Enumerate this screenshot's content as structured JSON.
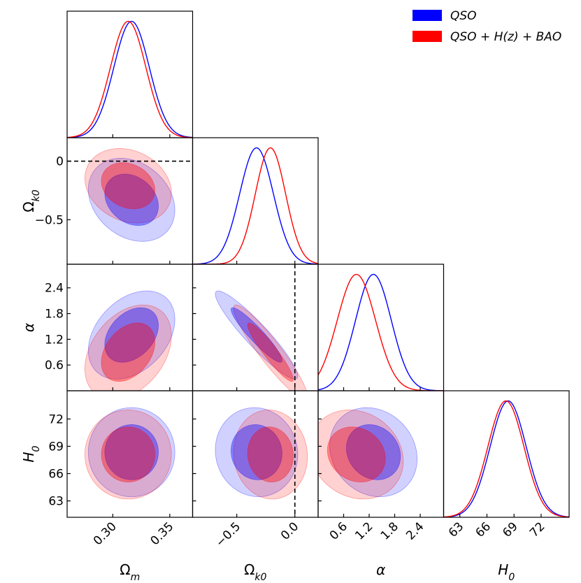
{
  "chart_data": {
    "type": "corner",
    "title": "",
    "parameters": [
      {
        "key": "om",
        "label": "Ωm",
        "symbol": "Ω",
        "sub": "m",
        "range": [
          0.26,
          0.37
        ],
        "ticks": [
          0.3,
          0.35
        ],
        "tick_labels": [
          "0.30",
          "0.35"
        ]
      },
      {
        "key": "ok",
        "label": "Ωk0",
        "symbol": "Ω",
        "sub": "k0",
        "range": [
          -0.88,
          0.2
        ],
        "ticks": [
          -0.5,
          0.0
        ],
        "tick_labels": [
          "−0.5",
          "0.0"
        ],
        "row_tick_labels": [
          "−0.5",
          "0"
        ]
      },
      {
        "key": "al",
        "label": "α",
        "symbol": "α",
        "sub": "",
        "range": [
          0.0,
          2.95
        ],
        "ticks": [
          0.6,
          1.2,
          1.8,
          2.4
        ],
        "tick_labels": [
          "0.6",
          "1.2",
          "1.8",
          "2.4"
        ]
      },
      {
        "key": "h0",
        "label": "H0",
        "symbol": "H",
        "sub": "0",
        "range": [
          61.2,
          75.1
        ],
        "ticks": [
          63,
          66,
          69,
          72
        ],
        "tick_labels": [
          "63",
          "66",
          "69",
          "72"
        ]
      }
    ],
    "reference_lines": [
      {
        "parameter": "ok",
        "value": 0.0,
        "style": "dashed",
        "color": "#000000"
      }
    ],
    "series": [
      {
        "name": "QSO",
        "legend_label": "QSO",
        "color": "#0000ff",
        "means": {
          "om": 0.3165,
          "ok": -0.33,
          "al": 1.3,
          "h0": 68.35
        },
        "sigmas": {
          "om": 0.0155,
          "ok": 0.145,
          "al": 0.42,
          "h0": 2.0
        },
        "correlations": {
          "om|ok": -0.25,
          "om|al": 0.35,
          "om|h0": 0.0,
          "ok|al": -0.93,
          "ok|h0": -0.05,
          "al|h0": -0.15
        }
      },
      {
        "name": "QSO + H(z) + BAO",
        "legend_label": "QSO + H(z) + BAO",
        "color": "#ff0000",
        "means": {
          "om": 0.3135,
          "ok": -0.21,
          "al": 0.9,
          "h0": 68.1
        },
        "sigmas": {
          "om": 0.0155,
          "ok": 0.13,
          "al": 0.45,
          "h0": 2.0
        },
        "correlations": {
          "om|ok": -0.2,
          "om|al": 0.35,
          "om|h0": 0.0,
          "ok|al": -0.93,
          "ok|h0": -0.05,
          "al|h0": -0.15
        }
      }
    ],
    "contour_levels": [
      "68%",
      "95%"
    ],
    "legend_position": "top-right"
  }
}
